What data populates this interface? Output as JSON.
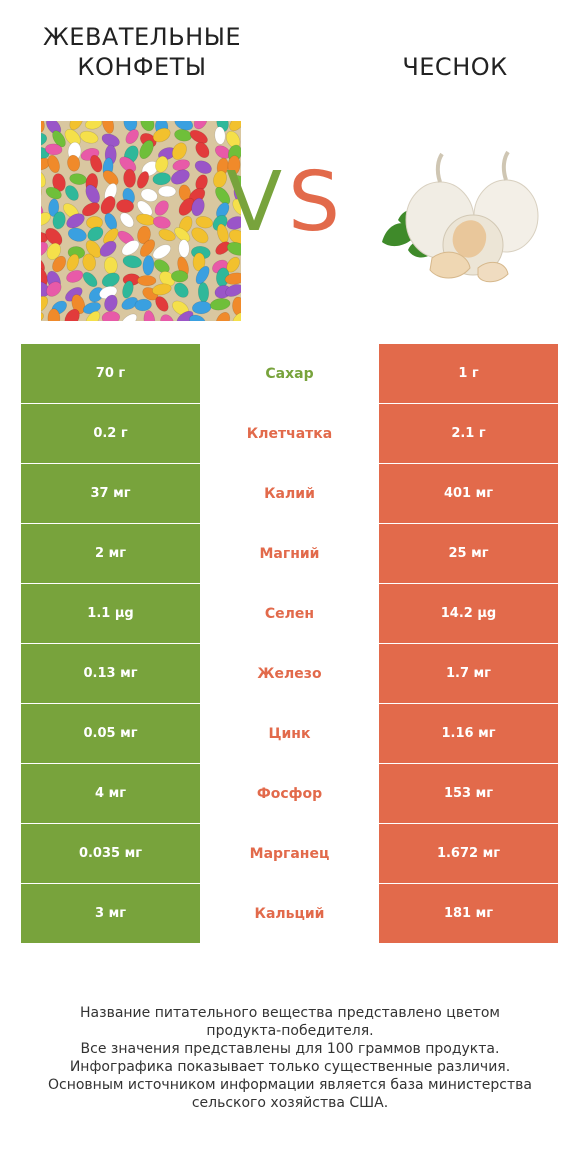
{
  "header": {
    "left_title": "ЖЕВАТЕЛЬНЫЕ КОНФЕТЫ",
    "right_title": "ЧЕСНОК",
    "vs_v": "V",
    "vs_s": "S"
  },
  "colors": {
    "left_product": "#78a33c",
    "right_product": "#e26a4b"
  },
  "images": {
    "left": "jelly-beans-image",
    "right": "garlic-image"
  },
  "rows": [
    {
      "nutrient": "Сахар",
      "left": "70 г",
      "right": "1 г",
      "winner": "left"
    },
    {
      "nutrient": "Клетчатка",
      "left": "0.2 г",
      "right": "2.1 г",
      "winner": "right"
    },
    {
      "nutrient": "Калий",
      "left": "37 мг",
      "right": "401 мг",
      "winner": "right"
    },
    {
      "nutrient": "Магний",
      "left": "2 мг",
      "right": "25 мг",
      "winner": "right"
    },
    {
      "nutrient": "Селен",
      "left": "1.1 µg",
      "right": "14.2 µg",
      "winner": "right"
    },
    {
      "nutrient": "Железо",
      "left": "0.13 мг",
      "right": "1.7 мг",
      "winner": "right"
    },
    {
      "nutrient": "Цинк",
      "left": "0.05 мг",
      "right": "1.16 мг",
      "winner": "right"
    },
    {
      "nutrient": "Фосфор",
      "left": "4 мг",
      "right": "153 мг",
      "winner": "right"
    },
    {
      "nutrient": "Марганец",
      "left": "0.035 мг",
      "right": "1.672 мг",
      "winner": "right"
    },
    {
      "nutrient": "Кальций",
      "left": "3 мг",
      "right": "181 мг",
      "winner": "right"
    }
  ],
  "footer": [
    "Название питательного вещества представлено цветом",
    "продукта-победителя.",
    "Все значения представлены для 100 граммов продукта.",
    "Инфографика показывает только существенные различия.",
    "Основным источником информации является база министерства",
    "сельского хозяйства США."
  ]
}
